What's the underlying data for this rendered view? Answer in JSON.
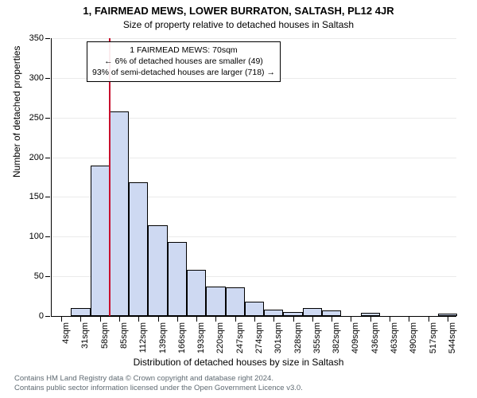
{
  "title": "1, FAIRMEAD MEWS, LOWER BURRATON, SALTASH, PL12 4JR",
  "subtitle": "Size of property relative to detached houses in Saltash",
  "y_axis_label": "Number of detached properties",
  "x_axis_label": "Distribution of detached houses by size in Saltash",
  "footer_line1": "Contains HM Land Registry data © Crown copyright and database right 2024.",
  "footer_line2": "Contains public sector information licensed under the Open Government Licence v3.0.",
  "chart": {
    "type": "histogram",
    "ylim": [
      0,
      350
    ],
    "ytick_step": 50,
    "bar_color": "#ced9f2",
    "bar_border_color": "#000000",
    "ref_line_color": "#c8102e",
    "ref_line_width": 2,
    "ref_line_x_index": 2.47,
    "grid_color": "#000000",
    "grid_opacity": 0.08,
    "background_color": "#ffffff",
    "bar_width_ratio": 1.0,
    "x_tick_labels": [
      "4sqm",
      "31sqm",
      "58sqm",
      "85sqm",
      "112sqm",
      "139sqm",
      "166sqm",
      "193sqm",
      "220sqm",
      "247sqm",
      "274sqm",
      "301sqm",
      "328sqm",
      "355sqm",
      "382sqm",
      "409sqm",
      "436sqm",
      "463sqm",
      "490sqm",
      "517sqm",
      "544sqm"
    ],
    "values": [
      0,
      10,
      190,
      258,
      168,
      114,
      93,
      58,
      37,
      36,
      18,
      8,
      5,
      10,
      7,
      0,
      4,
      0,
      0,
      0,
      3
    ],
    "annotations": [
      "1 FAIRMEAD MEWS: 70sqm",
      "← 6% of detached houses are smaller (49)",
      "93% of semi-detached houses are larger (718) →"
    ]
  }
}
